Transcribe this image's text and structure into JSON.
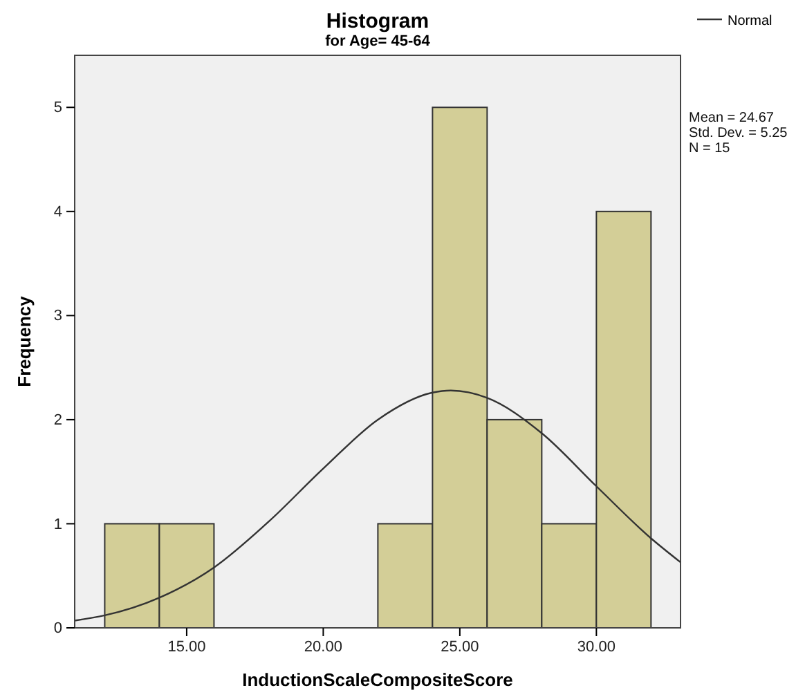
{
  "chart_data": {
    "type": "histogram",
    "title": "Histogram",
    "subtitle": "for Age= 45-64",
    "xlabel": "InductionScaleCompositeScore",
    "ylabel": "Frequency",
    "bins": [
      12,
      14,
      16,
      18,
      20,
      22,
      24,
      26,
      28,
      30,
      32
    ],
    "values": [
      1,
      1,
      0,
      0,
      0,
      1,
      5,
      2,
      1,
      4
    ],
    "color": "#d3ce97",
    "series": [
      {
        "type": "line",
        "name": "Normal",
        "color": "#333333",
        "x": [
          10.9,
          12,
          14,
          16,
          18,
          20,
          22,
          24,
          24.67,
          26,
          28,
          30,
          32,
          33.08
        ],
        "values": [
          0.07,
          0.12,
          0.29,
          0.58,
          1.02,
          1.53,
          2.0,
          2.26,
          2.28,
          2.21,
          1.87,
          1.36,
          0.86,
          0.63
        ]
      }
    ],
    "xlim": [
      10.9,
      33.08
    ],
    "xticks": [
      {
        "value": 15,
        "label": "15.00"
      },
      {
        "value": 20,
        "label": "20.00"
      },
      {
        "value": 25,
        "label": "25.00"
      },
      {
        "value": 30,
        "label": "30.00"
      }
    ],
    "ylim": [
      0,
      5.5
    ],
    "yticks": [
      0,
      1,
      2,
      3,
      4,
      5
    ],
    "legend": "top right",
    "grid": false,
    "annotations": [
      "Mean = 24.67",
      "Std. Dev. = 5.25",
      "N = 15"
    ]
  }
}
